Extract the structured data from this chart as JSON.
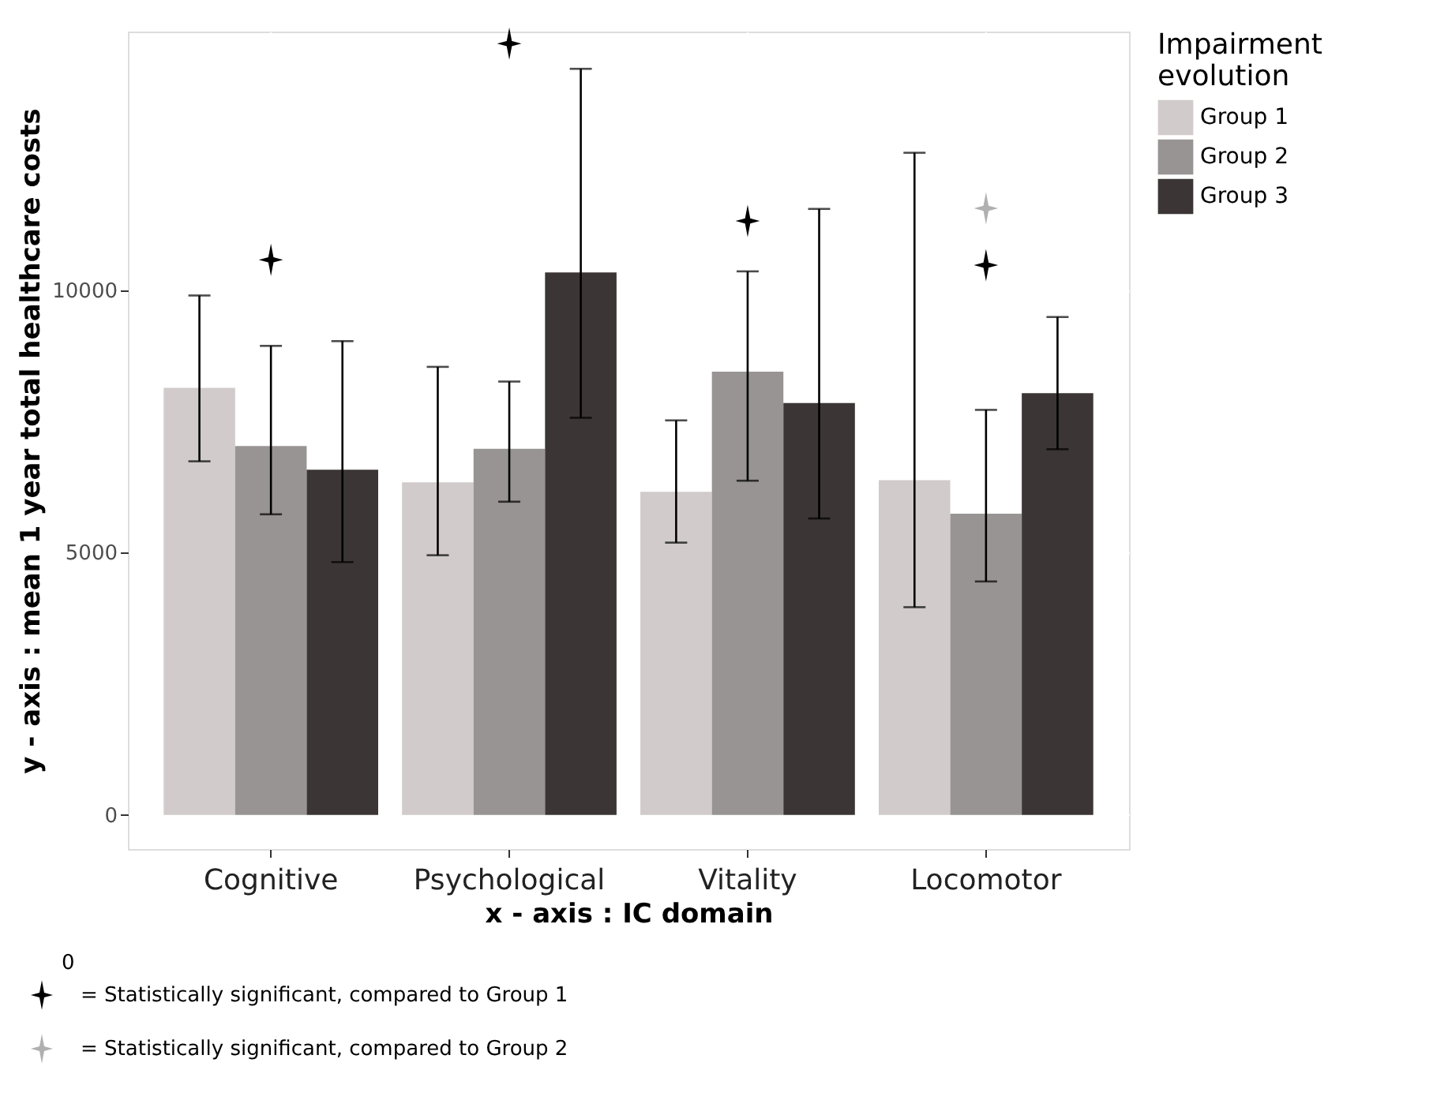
{
  "chart_data": {
    "type": "bar",
    "xlabel": "x - axis : IC domain",
    "ylabel": "y - axis : mean 1 year total healthcare costs",
    "legend_title": "Impairment evolution",
    "categories": [
      "Cognitive",
      "Psychological",
      "Vitality",
      "Locomotor"
    ],
    "series": [
      {
        "name": "Group 1",
        "color": "#d1cbcb",
        "values": [
          8140,
          6340,
          6160,
          6380
        ],
        "errors": [
          [
            6740,
            9900
          ],
          [
            4950,
            8540
          ],
          [
            5190,
            7520
          ],
          [
            3960,
            12620
          ]
        ]
      },
      {
        "name": "Group 2",
        "color": "#999494",
        "values": [
          7030,
          6980,
          8450,
          5740
        ],
        "errors": [
          [
            5730,
            8940
          ],
          [
            5970,
            8260
          ],
          [
            6370,
            10360
          ],
          [
            4450,
            7720
          ]
        ]
      },
      {
        "name": "Group 3",
        "color": "#3b3635",
        "values": [
          6580,
          10340,
          7850,
          8040
        ],
        "errors": [
          [
            4820,
            9030
          ],
          [
            7570,
            14220
          ],
          [
            5650,
            11550
          ],
          [
            6970,
            9490
          ]
        ]
      },
      {
        "name": "= Statistically significant, compared to Group 1",
        "type": "scatter",
        "marker": "star",
        "color": "#000000",
        "x": [
          "Cognitive",
          "Psychological",
          "Vitality",
          "Locomotor"
        ],
        "values": [
          10580,
          14700,
          11320,
          10480
        ]
      },
      {
        "name": "= Statistically significant, compared to Group 2",
        "type": "scatter",
        "marker": "star",
        "color": "#b0b0b0",
        "x": [
          "Locomotor"
        ],
        "values": [
          11560
        ]
      }
    ],
    "ylim": [
      -650,
      14930
    ],
    "yticks": [
      0,
      5000,
      10000
    ],
    "grid": true,
    "legend": "right",
    "annotations": [
      "0"
    ]
  }
}
